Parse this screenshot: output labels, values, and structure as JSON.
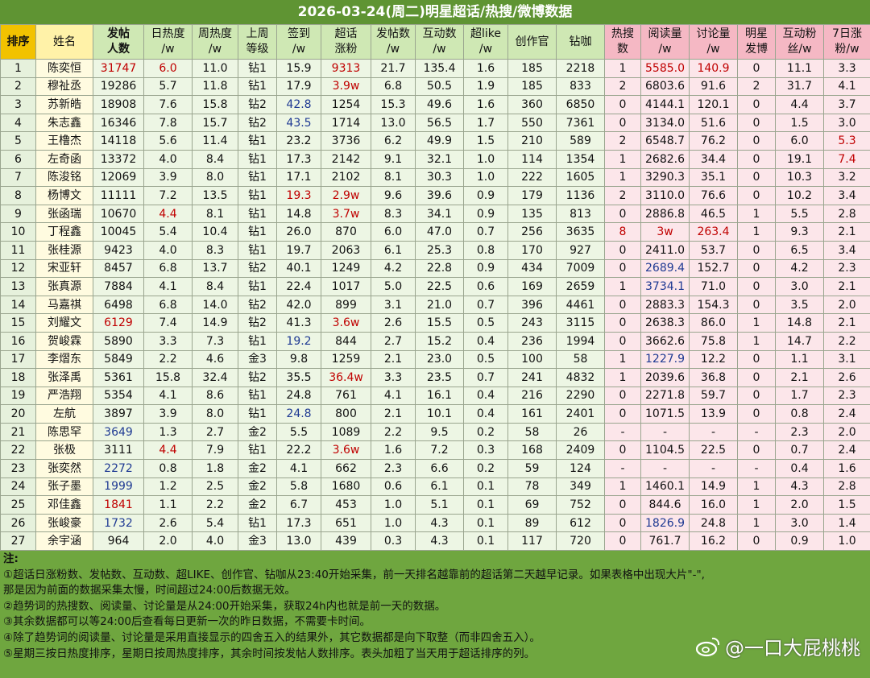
{
  "title": "2026-03-24(周二)明星超话/热搜/微博数据",
  "table": {
    "headers": [
      "排序",
      "姓名",
      "发帖\n人数",
      "日热度\n/w",
      "周热度\n/w",
      "上周\n等级",
      "签到\n/w",
      "超话\n涨粉",
      "发帖数\n/w",
      "互动数\n/w",
      "超like\n/w",
      "创作官",
      "钻咖",
      "热搜\n数",
      "阅读量\n/w",
      "讨论量\n/w",
      "明星\n发博",
      "互动粉\n丝/w",
      "7日涨\n粉/w"
    ],
    "rows": [
      [
        "1",
        "陈奕恒",
        "31747",
        "6.0",
        "11.0",
        "钻1",
        "15.9",
        "9313",
        "21.7",
        "135.4",
        "1.6",
        "185",
        "2218",
        "1",
        "5585.0",
        "140.9",
        "0",
        "11.1",
        "3.3"
      ],
      [
        "2",
        "穆祉丞",
        "19286",
        "5.7",
        "11.8",
        "钻1",
        "17.9",
        "3.9w",
        "6.8",
        "50.5",
        "1.9",
        "185",
        "833",
        "2",
        "6803.6",
        "91.6",
        "2",
        "31.7",
        "4.1"
      ],
      [
        "3",
        "苏新皓",
        "18908",
        "7.6",
        "15.8",
        "钻2",
        "42.8",
        "1254",
        "15.3",
        "49.6",
        "1.6",
        "360",
        "6850",
        "0",
        "4144.1",
        "120.1",
        "0",
        "4.4",
        "3.7"
      ],
      [
        "4",
        "朱志鑫",
        "16346",
        "7.8",
        "15.7",
        "钻2",
        "43.5",
        "1714",
        "13.0",
        "56.5",
        "1.7",
        "550",
        "7361",
        "0",
        "3134.0",
        "51.6",
        "0",
        "1.5",
        "3.0"
      ],
      [
        "5",
        "王橹杰",
        "14118",
        "5.6",
        "11.4",
        "钻1",
        "23.2",
        "3736",
        "6.2",
        "49.9",
        "1.5",
        "210",
        "589",
        "2",
        "6548.7",
        "76.2",
        "0",
        "6.0",
        "5.3"
      ],
      [
        "6",
        "左奇函",
        "13372",
        "4.0",
        "8.4",
        "钻1",
        "17.3",
        "2142",
        "9.1",
        "32.1",
        "1.0",
        "114",
        "1354",
        "1",
        "2682.6",
        "34.4",
        "0",
        "19.1",
        "7.4"
      ],
      [
        "7",
        "陈浚铭",
        "12069",
        "3.9",
        "8.0",
        "钻1",
        "17.1",
        "2102",
        "8.1",
        "30.3",
        "1.0",
        "222",
        "1605",
        "1",
        "3290.3",
        "35.1",
        "0",
        "10.3",
        "3.2"
      ],
      [
        "8",
        "杨博文",
        "11111",
        "7.2",
        "13.5",
        "钻1",
        "19.3",
        "2.9w",
        "9.6",
        "39.6",
        "0.9",
        "179",
        "1136",
        "2",
        "3110.0",
        "76.6",
        "0",
        "10.2",
        "3.4"
      ],
      [
        "9",
        "张函瑞",
        "10670",
        "4.4",
        "8.1",
        "钻1",
        "14.8",
        "3.7w",
        "8.3",
        "34.1",
        "0.9",
        "135",
        "813",
        "0",
        "2886.8",
        "46.5",
        "1",
        "5.5",
        "2.8"
      ],
      [
        "10",
        "丁程鑫",
        "10045",
        "5.4",
        "10.4",
        "钻1",
        "26.0",
        "870",
        "6.0",
        "47.0",
        "0.7",
        "256",
        "3635",
        "8",
        "3w",
        "263.4",
        "1",
        "9.3",
        "2.1"
      ],
      [
        "11",
        "张桂源",
        "9423",
        "4.0",
        "8.3",
        "钻1",
        "19.7",
        "2063",
        "6.1",
        "25.3",
        "0.8",
        "170",
        "927",
        "0",
        "2411.0",
        "53.7",
        "0",
        "6.5",
        "3.4"
      ],
      [
        "12",
        "宋亚轩",
        "8457",
        "6.8",
        "13.7",
        "钻2",
        "40.1",
        "1249",
        "4.2",
        "22.8",
        "0.9",
        "434",
        "7009",
        "0",
        "2689.4",
        "152.7",
        "0",
        "4.2",
        "2.3"
      ],
      [
        "13",
        "张真源",
        "7884",
        "4.1",
        "8.4",
        "钻1",
        "22.4",
        "1017",
        "5.0",
        "22.5",
        "0.6",
        "169",
        "2659",
        "1",
        "3734.1",
        "71.0",
        "0",
        "3.0",
        "2.1"
      ],
      [
        "14",
        "马嘉祺",
        "6498",
        "6.8",
        "14.0",
        "钻2",
        "42.0",
        "899",
        "3.1",
        "21.0",
        "0.7",
        "396",
        "4461",
        "0",
        "2883.3",
        "154.3",
        "0",
        "3.5",
        "2.0"
      ],
      [
        "15",
        "刘耀文",
        "6129",
        "7.4",
        "14.9",
        "钻2",
        "41.3",
        "3.6w",
        "2.6",
        "15.5",
        "0.5",
        "243",
        "3115",
        "0",
        "2638.3",
        "86.0",
        "1",
        "14.8",
        "2.1"
      ],
      [
        "16",
        "贺峻霖",
        "5890",
        "3.3",
        "7.3",
        "钻1",
        "19.2",
        "844",
        "2.7",
        "15.2",
        "0.4",
        "236",
        "1994",
        "0",
        "3662.6",
        "75.8",
        "1",
        "14.7",
        "2.2"
      ],
      [
        "17",
        "李熠东",
        "5849",
        "2.2",
        "4.6",
        "金3",
        "9.8",
        "1259",
        "2.1",
        "23.0",
        "0.5",
        "100",
        "58",
        "1",
        "1227.9",
        "12.2",
        "0",
        "1.1",
        "3.1"
      ],
      [
        "18",
        "张泽禹",
        "5361",
        "15.8",
        "32.4",
        "钻2",
        "35.5",
        "36.4w",
        "3.3",
        "23.5",
        "0.7",
        "241",
        "4832",
        "1",
        "2039.6",
        "36.8",
        "0",
        "2.1",
        "2.6"
      ],
      [
        "19",
        "严浩翔",
        "5354",
        "4.1",
        "8.6",
        "钻1",
        "24.8",
        "761",
        "4.1",
        "16.1",
        "0.4",
        "216",
        "2290",
        "0",
        "2271.8",
        "59.7",
        "0",
        "1.7",
        "2.3"
      ],
      [
        "20",
        "左航",
        "3897",
        "3.9",
        "8.0",
        "钻1",
        "24.8",
        "800",
        "2.1",
        "10.1",
        "0.4",
        "161",
        "2401",
        "0",
        "1071.5",
        "13.9",
        "0",
        "0.8",
        "2.4"
      ],
      [
        "21",
        "陈思罕",
        "3649",
        "1.3",
        "2.7",
        "金2",
        "5.5",
        "1089",
        "2.2",
        "9.5",
        "0.2",
        "58",
        "26",
        "-",
        "-",
        "-",
        "-",
        "2.3",
        "2.0"
      ],
      [
        "22",
        "张极",
        "3111",
        "4.4",
        "7.9",
        "钻1",
        "22.2",
        "3.6w",
        "1.6",
        "7.2",
        "0.3",
        "168",
        "2409",
        "0",
        "1104.5",
        "22.5",
        "0",
        "0.7",
        "2.4"
      ],
      [
        "23",
        "张奕然",
        "2272",
        "0.8",
        "1.8",
        "金2",
        "4.1",
        "662",
        "2.3",
        "6.6",
        "0.2",
        "59",
        "124",
        "-",
        "-",
        "-",
        "-",
        "0.4",
        "1.6"
      ],
      [
        "24",
        "张子墨",
        "1999",
        "1.2",
        "2.5",
        "金2",
        "5.8",
        "1680",
        "0.6",
        "6.1",
        "0.1",
        "78",
        "349",
        "1",
        "1460.1",
        "14.9",
        "1",
        "4.3",
        "2.8"
      ],
      [
        "25",
        "邓佳鑫",
        "1841",
        "1.1",
        "2.2",
        "金2",
        "6.7",
        "453",
        "1.0",
        "5.1",
        "0.1",
        "69",
        "752",
        "0",
        "844.6",
        "16.0",
        "1",
        "2.0",
        "1.5"
      ],
      [
        "26",
        "张峻豪",
        "1732",
        "2.6",
        "5.4",
        "钻1",
        "17.3",
        "651",
        "1.0",
        "4.3",
        "0.1",
        "89",
        "612",
        "0",
        "1826.9",
        "24.8",
        "1",
        "3.0",
        "1.4"
      ],
      [
        "27",
        "余宇涵",
        "964",
        "2.0",
        "4.0",
        "金3",
        "13.0",
        "439",
        "0.3",
        "4.3",
        "0.1",
        "117",
        "720",
        "0",
        "761.7",
        "16.2",
        "0",
        "0.9",
        "1.0"
      ]
    ],
    "text_colors": [
      [
        0,
        2,
        "#c00000"
      ],
      [
        0,
        3,
        "#c00000"
      ],
      [
        0,
        7,
        "#c00000"
      ],
      [
        0,
        14,
        "#c00000"
      ],
      [
        0,
        15,
        "#c00000"
      ],
      [
        1,
        7,
        "#c00000"
      ],
      [
        2,
        6,
        "#1f3a93"
      ],
      [
        3,
        6,
        "#1f3a93"
      ],
      [
        4,
        18,
        "#c00000"
      ],
      [
        5,
        18,
        "#c00000"
      ],
      [
        7,
        6,
        "#c00000"
      ],
      [
        7,
        7,
        "#c00000"
      ],
      [
        8,
        3,
        "#c00000"
      ],
      [
        8,
        7,
        "#c00000"
      ],
      [
        9,
        13,
        "#c00000"
      ],
      [
        9,
        14,
        "#c00000"
      ],
      [
        9,
        15,
        "#c00000"
      ],
      [
        11,
        14,
        "#1f3a93"
      ],
      [
        12,
        14,
        "#1f3a93"
      ],
      [
        14,
        2,
        "#c00000"
      ],
      [
        14,
        7,
        "#c00000"
      ],
      [
        15,
        6,
        "#1f3a93"
      ],
      [
        16,
        14,
        "#1f3a93"
      ],
      [
        17,
        7,
        "#c00000"
      ],
      [
        19,
        6,
        "#1f3a93"
      ],
      [
        20,
        2,
        "#1f3a93"
      ],
      [
        21,
        3,
        "#c00000"
      ],
      [
        21,
        7,
        "#c00000"
      ],
      [
        22,
        2,
        "#1f3a93"
      ],
      [
        23,
        2,
        "#1f3a93"
      ],
      [
        24,
        2,
        "#c00000"
      ],
      [
        25,
        2,
        "#1f3a93"
      ],
      [
        25,
        14,
        "#1f3a93"
      ]
    ]
  },
  "notes": {
    "heading": "注:",
    "lines": [
      "①超话日涨粉数、发帖数、互动数、超LIKE、创作官、钻咖从23:40开始采集，前一天排名越靠前的超话第二天越早记录。如果表格中出现大片\"-\",",
      "那是因为前面的数据采集太慢，时间超过24:00后数据无效。",
      "②趋势词的热搜数、阅读量、讨论量是从24:00开始采集，获取24h内也就是前一天的数据。",
      "③其余数据都可以等24:00后查看每日更新一次的昨日数据，不需要卡时间。",
      "④除了趋势词的阅读量、讨论量是采用直接显示的四舍五入的结果外，其它数据都是向下取整（而非四舍五入）。",
      "⑤星期三按日热度排序，星期日按周热度排序，其余时间按发帖人数排序。表头加粗了当天用于超话排序的列。"
    ]
  },
  "watermark": "@一口大屁桃桃"
}
